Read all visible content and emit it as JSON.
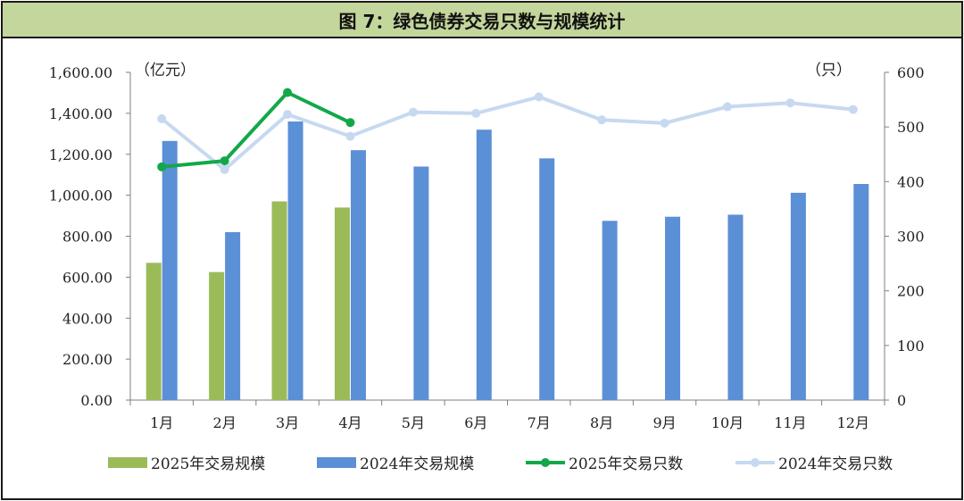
{
  "chart_data": {
    "type": "bar",
    "title": "图 7：绿色债券交易只数与规模统计",
    "categories": [
      "1月",
      "2月",
      "3月",
      "4月",
      "5月",
      "6月",
      "7月",
      "8月",
      "9月",
      "10月",
      "11月",
      "12月"
    ],
    "left_axis": {
      "unit": "（亿元）",
      "ylim": [
        0,
        1600
      ],
      "ticks": [
        "0.00",
        "200.00",
        "400.00",
        "600.00",
        "800.00",
        "1,000.00",
        "1,200.00",
        "1,400.00",
        "1,600.00"
      ]
    },
    "right_axis": {
      "unit": "（只）",
      "ylim": [
        0,
        600
      ],
      "ticks": [
        "0",
        "100",
        "200",
        "300",
        "400",
        "500",
        "600"
      ]
    },
    "series": [
      {
        "name": "2025年交易规模",
        "kind": "bar",
        "axis": "left",
        "color": "#9bbb59",
        "values": [
          670,
          625,
          970,
          940,
          null,
          null,
          null,
          null,
          null,
          null,
          null,
          null
        ]
      },
      {
        "name": "2024年交易规模",
        "kind": "bar",
        "axis": "left",
        "color": "#5b8fd6",
        "values": [
          1265,
          820,
          1360,
          1220,
          1140,
          1320,
          1180,
          875,
          895,
          905,
          1012,
          1055
        ]
      },
      {
        "name": "2025年交易只数",
        "kind": "line",
        "axis": "right",
        "color": "#12a84a",
        "values": [
          427,
          438,
          563,
          508,
          null,
          null,
          null,
          null,
          null,
          null,
          null,
          null
        ]
      },
      {
        "name": "2024年交易只数",
        "kind": "line",
        "axis": "right",
        "color": "#c6d9f1",
        "values": [
          515,
          422,
          523,
          483,
          527,
          525,
          555,
          513,
          507,
          537,
          544,
          532
        ]
      }
    ],
    "grid": false,
    "legend_position": "bottom"
  }
}
